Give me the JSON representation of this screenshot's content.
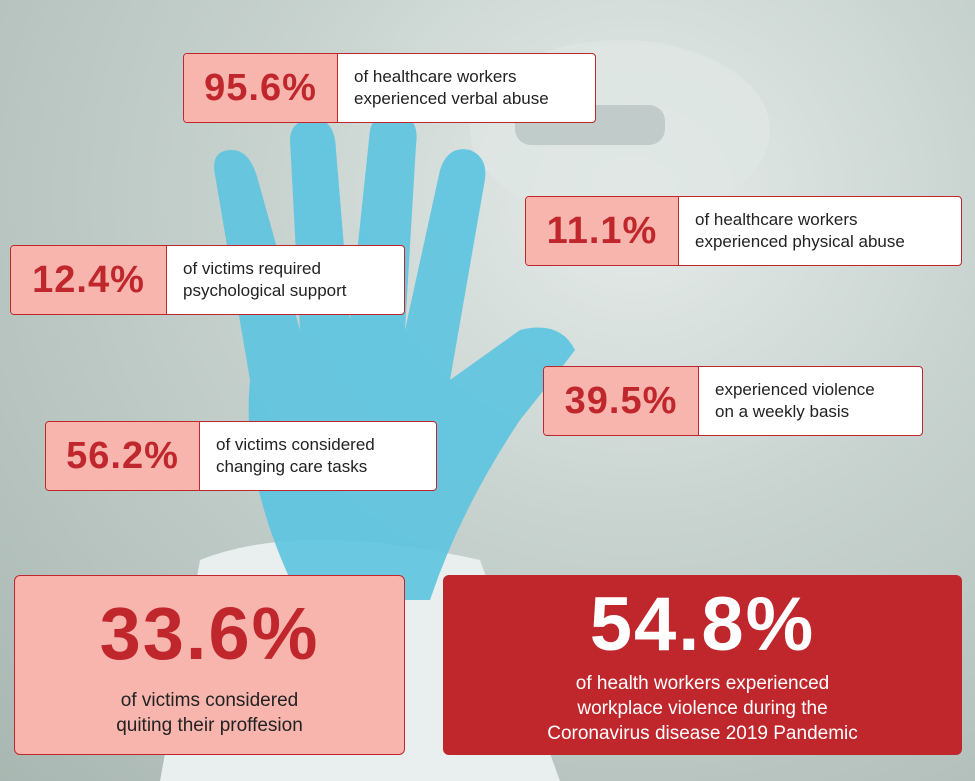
{
  "callouts": [
    {
      "stat": "95.6%",
      "lines": [
        "of healthcare workers",
        "experienced verbal abuse"
      ]
    },
    {
      "stat": "11.1%",
      "lines": [
        "of healthcare workers",
        "experienced physical abuse"
      ]
    },
    {
      "stat": "12.4%",
      "lines": [
        "of victims required",
        "psychological support"
      ]
    },
    {
      "stat": "39.5%",
      "lines": [
        "experienced violence",
        "on a weekly basis"
      ]
    },
    {
      "stat": "56.2%",
      "lines": [
        "of victims considered",
        "changing care tasks"
      ]
    }
  ],
  "highlight_left": {
    "stat": "33.6%",
    "lines": [
      "of victims considered",
      "quiting their proffesion"
    ]
  },
  "highlight_right": {
    "stat": "54.8%",
    "lines": [
      "of health workers experienced",
      "workplace violence during the",
      "Coronavirus disease 2019 Pandemic"
    ]
  }
}
